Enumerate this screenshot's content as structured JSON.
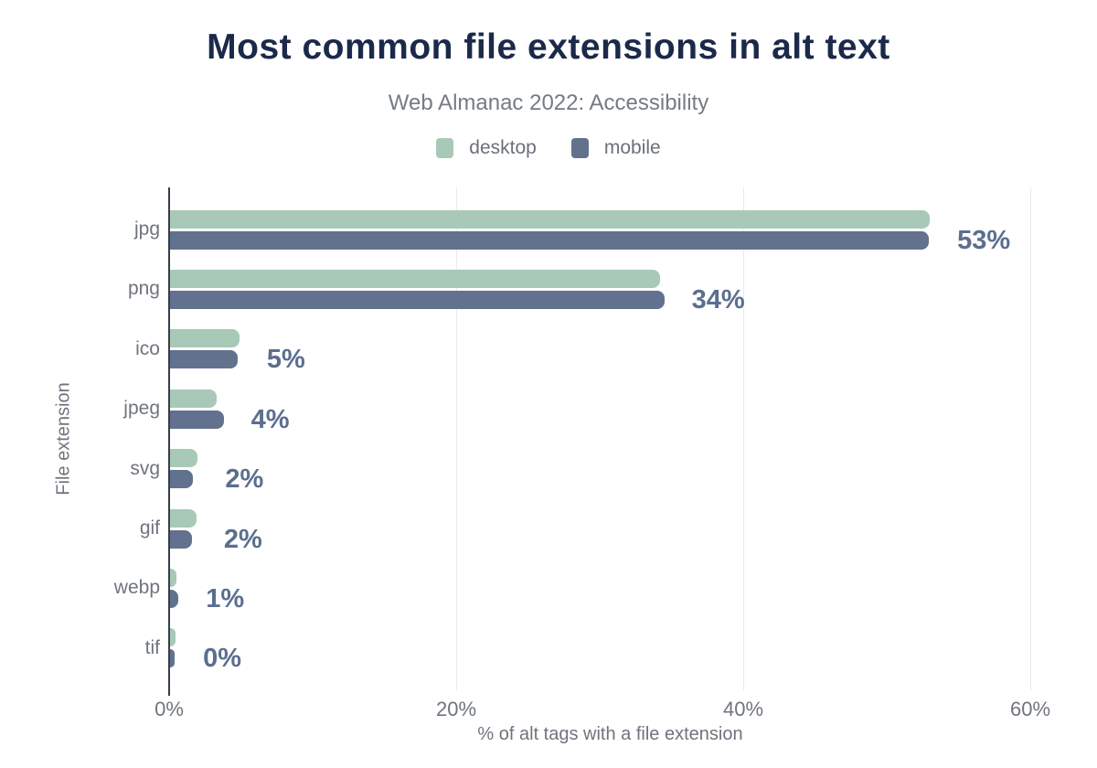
{
  "chart": {
    "title": "Most common file extensions in alt text",
    "subtitle": "Web Almanac 2022: Accessibility",
    "xlabel": "% of alt tags with a file extension",
    "ylabel": "File extension"
  },
  "legend": [
    {
      "label": "desktop",
      "color": "#a8c9b8"
    },
    {
      "label": "mobile",
      "color": "#62718d"
    }
  ],
  "chart_data": {
    "type": "bar",
    "orientation": "horizontal",
    "title": "Most common file extensions in alt text",
    "subtitle": "Web Almanac 2022: Accessibility",
    "xlabel": "% of alt tags with a file extension",
    "ylabel": "File extension",
    "categories": [
      "jpg",
      "png",
      "ico",
      "jpeg",
      "svg",
      "gif",
      "webp",
      "tif"
    ],
    "series": [
      {
        "name": "desktop",
        "color": "#a8c9b8",
        "values": [
          53.0,
          34.2,
          4.9,
          3.3,
          2.0,
          1.9,
          0.5,
          0.45
        ]
      },
      {
        "name": "mobile",
        "color": "#62718d",
        "values": [
          52.9,
          34.5,
          4.8,
          3.8,
          1.65,
          1.6,
          0.65,
          0.4
        ]
      }
    ],
    "value_labels": [
      "53%",
      "34%",
      "5%",
      "4%",
      "2%",
      "2%",
      "1%",
      "0%"
    ],
    "x_ticks": [
      {
        "value": 0,
        "label": "0%"
      },
      {
        "value": 20,
        "label": "20%"
      },
      {
        "value": 40,
        "label": "40%"
      },
      {
        "value": 60,
        "label": "60%"
      }
    ],
    "xlim": [
      0,
      61.5
    ],
    "grid": "vertical",
    "legend_position": "top-center"
  },
  "colors": {
    "title": "#1b294a",
    "subtitle": "#757b85",
    "legend_text": "#6b7078",
    "axis_text": "#6f747d",
    "value_label": "#5b6e8f",
    "gridline": "#e9eaec",
    "axis_line": "#363d4a",
    "desktop": "#a8c9b8",
    "mobile": "#62718d",
    "background": "#ffffff"
  }
}
